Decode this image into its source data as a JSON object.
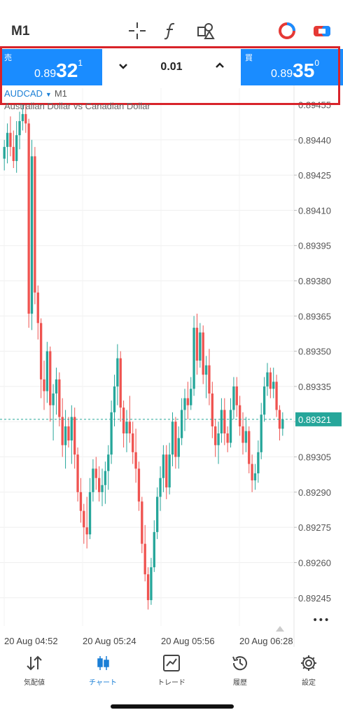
{
  "header": {
    "timeframe": "M1",
    "icons": [
      "crosshair-icon",
      "function-icon",
      "objects-icon",
      "trade-type-icon",
      "chart-color-icon"
    ]
  },
  "trade_panel": {
    "sell": {
      "label": "売",
      "price_prefix": "0.89",
      "price_big": "32",
      "price_sup": "1"
    },
    "buy": {
      "label": "買",
      "price_prefix": "0.89",
      "price_big": "35",
      "price_sup": "0"
    },
    "lot": "0.01",
    "highlight_color": "#d8232a",
    "accent_color": "#1a8cff"
  },
  "symbol": {
    "name": "AUDCAD",
    "timeframe": "M1",
    "description": "Australian Dollar vs Canadian Dollar"
  },
  "chart_data": {
    "type": "candlestick",
    "y_ticks": [
      "0.89455",
      "0.89440",
      "0.89425",
      "0.89410",
      "0.89395",
      "0.89380",
      "0.89365",
      "0.89350",
      "0.89335",
      "0.89320",
      "0.89305",
      "0.89290",
      "0.89275",
      "0.89260",
      "0.89245"
    ],
    "ylim": [
      0.89233,
      0.89462
    ],
    "current_price": "0.89321",
    "x_ticks": [
      "20 Aug 04:52",
      "20 Aug 05:24",
      "20 Aug 05:56",
      "20 Aug 06:28"
    ],
    "up_color": "#26a69a",
    "down_color": "#ef5350",
    "candles": [
      [
        0.89432,
        0.8944,
        0.89427,
        0.89437
      ],
      [
        0.89437,
        0.89447,
        0.8943,
        0.89443
      ],
      [
        0.89443,
        0.8945,
        0.89433,
        0.89437
      ],
      [
        0.89437,
        0.89444,
        0.89428,
        0.89431
      ],
      [
        0.89431,
        0.89448,
        0.89426,
        0.89442
      ],
      [
        0.89442,
        0.89452,
        0.89436,
        0.89448
      ],
      [
        0.89448,
        0.89455,
        0.89444,
        0.89451
      ],
      [
        0.89451,
        0.89455,
        0.89443,
        0.89447
      ],
      [
        0.89447,
        0.89449,
        0.8936,
        0.89366
      ],
      [
        0.89366,
        0.8944,
        0.89359,
        0.89433
      ],
      [
        0.89433,
        0.89437,
        0.8937,
        0.89375
      ],
      [
        0.89375,
        0.89378,
        0.89355,
        0.89362
      ],
      [
        0.89362,
        0.89364,
        0.8933,
        0.89338
      ],
      [
        0.89338,
        0.89346,
        0.89325,
        0.89333
      ],
      [
        0.89333,
        0.89354,
        0.89328,
        0.8935
      ],
      [
        0.8935,
        0.89352,
        0.8932,
        0.89327
      ],
      [
        0.89327,
        0.89336,
        0.89312,
        0.89332
      ],
      [
        0.89332,
        0.89343,
        0.89323,
        0.89338
      ],
      [
        0.89338,
        0.89341,
        0.89318,
        0.89322
      ],
      [
        0.89322,
        0.8933,
        0.89305,
        0.8931
      ],
      [
        0.8931,
        0.89325,
        0.893,
        0.89318
      ],
      [
        0.89318,
        0.89322,
        0.89309,
        0.89312
      ],
      [
        0.89312,
        0.89327,
        0.89302,
        0.89322
      ],
      [
        0.89322,
        0.89326,
        0.893,
        0.89306
      ],
      [
        0.89306,
        0.89309,
        0.89286,
        0.8929
      ],
      [
        0.8929,
        0.89296,
        0.89277,
        0.89282
      ],
      [
        0.89282,
        0.89285,
        0.89268,
        0.89275
      ],
      [
        0.89275,
        0.89288,
        0.89266,
        0.89272
      ],
      [
        0.89272,
        0.89296,
        0.8927,
        0.8929
      ],
      [
        0.8929,
        0.89304,
        0.89286,
        0.893
      ],
      [
        0.893,
        0.89305,
        0.89291,
        0.89296
      ],
      [
        0.89296,
        0.89301,
        0.89286,
        0.8929
      ],
      [
        0.8929,
        0.893,
        0.89284,
        0.89293
      ],
      [
        0.89293,
        0.89303,
        0.89285,
        0.89299
      ],
      [
        0.89299,
        0.8931,
        0.89291,
        0.89306
      ],
      [
        0.89306,
        0.89329,
        0.89302,
        0.89324
      ],
      [
        0.89324,
        0.8934,
        0.89318,
        0.89335
      ],
      [
        0.89335,
        0.89353,
        0.89327,
        0.89347
      ],
      [
        0.89347,
        0.8935,
        0.8932,
        0.89326
      ],
      [
        0.89326,
        0.89329,
        0.89309,
        0.89315
      ],
      [
        0.89315,
        0.89325,
        0.89307,
        0.8932
      ],
      [
        0.8932,
        0.89331,
        0.89311,
        0.89315
      ],
      [
        0.89315,
        0.8932,
        0.89302,
        0.89307
      ],
      [
        0.89307,
        0.89317,
        0.89294,
        0.893
      ],
      [
        0.893,
        0.89303,
        0.89282,
        0.89286
      ],
      [
        0.89286,
        0.89288,
        0.89264,
        0.89268
      ],
      [
        0.89268,
        0.89276,
        0.89252,
        0.89255
      ],
      [
        0.89255,
        0.89258,
        0.8924,
        0.89244
      ],
      [
        0.89244,
        0.89262,
        0.89242,
        0.89258
      ],
      [
        0.89258,
        0.89278,
        0.89256,
        0.89273
      ],
      [
        0.89273,
        0.89292,
        0.8927,
        0.89288
      ],
      [
        0.89288,
        0.89301,
        0.89282,
        0.89296
      ],
      [
        0.89296,
        0.8931,
        0.8929,
        0.89306
      ],
      [
        0.89306,
        0.8931,
        0.89287,
        0.89292
      ],
      [
        0.89292,
        0.89311,
        0.89289,
        0.89306
      ],
      [
        0.89306,
        0.89324,
        0.89301,
        0.8932
      ],
      [
        0.8932,
        0.89322,
        0.893,
        0.89305
      ],
      [
        0.89305,
        0.89318,
        0.893,
        0.89313
      ],
      [
        0.89313,
        0.8933,
        0.8931,
        0.89325
      ],
      [
        0.89325,
        0.89334,
        0.89316,
        0.8933
      ],
      [
        0.8933,
        0.89337,
        0.89321,
        0.89327
      ],
      [
        0.89327,
        0.89339,
        0.89325,
        0.89334
      ],
      [
        0.89334,
        0.89365,
        0.89331,
        0.8936
      ],
      [
        0.8936,
        0.89366,
        0.8934,
        0.89346
      ],
      [
        0.89346,
        0.89362,
        0.89343,
        0.89358
      ],
      [
        0.89358,
        0.89361,
        0.89336,
        0.8934
      ],
      [
        0.8934,
        0.89348,
        0.8933,
        0.89344
      ],
      [
        0.89344,
        0.89351,
        0.89327,
        0.89332
      ],
      [
        0.89332,
        0.89337,
        0.89313,
        0.89318
      ],
      [
        0.89318,
        0.89321,
        0.89305,
        0.8931
      ],
      [
        0.8931,
        0.8932,
        0.89302,
        0.89315
      ],
      [
        0.89315,
        0.8933,
        0.89311,
        0.89325
      ],
      [
        0.89325,
        0.8933,
        0.8931,
        0.89315
      ],
      [
        0.89315,
        0.89318,
        0.89307,
        0.89311
      ],
      [
        0.89311,
        0.8933,
        0.89309,
        0.89325
      ],
      [
        0.89325,
        0.89339,
        0.89321,
        0.89335
      ],
      [
        0.89335,
        0.89339,
        0.89322,
        0.89327
      ],
      [
        0.89327,
        0.89331,
        0.89314,
        0.89318
      ],
      [
        0.89318,
        0.89324,
        0.89306,
        0.89311
      ],
      [
        0.89311,
        0.89322,
        0.89307,
        0.89316
      ],
      [
        0.89316,
        0.89318,
        0.89298,
        0.89302
      ],
      [
        0.89302,
        0.89306,
        0.8929,
        0.89295
      ],
      [
        0.89295,
        0.89302,
        0.89291,
        0.89298
      ],
      [
        0.89298,
        0.89312,
        0.89294,
        0.89307
      ],
      [
        0.89307,
        0.89328,
        0.89304,
        0.89323
      ],
      [
        0.89323,
        0.89339,
        0.8932,
        0.89335
      ],
      [
        0.89335,
        0.89345,
        0.89331,
        0.89341
      ],
      [
        0.89341,
        0.89343,
        0.8933,
        0.89334
      ],
      [
        0.89334,
        0.89343,
        0.8933,
        0.89337
      ],
      [
        0.89337,
        0.8934,
        0.89322,
        0.89325
      ],
      [
        0.89325,
        0.89327,
        0.89312,
        0.89317
      ],
      [
        0.89317,
        0.89324,
        0.89314,
        0.89321
      ]
    ]
  },
  "chart_menu_glyph": "•••",
  "bottom_nav": [
    {
      "label": "気配値",
      "icon": "quotes-icon"
    },
    {
      "label": "チャート",
      "icon": "chart-candles-icon",
      "active": true
    },
    {
      "label": "トレード",
      "icon": "trade-icon"
    },
    {
      "label": "履歴",
      "icon": "history-icon"
    },
    {
      "label": "設定",
      "icon": "settings-icon"
    }
  ]
}
